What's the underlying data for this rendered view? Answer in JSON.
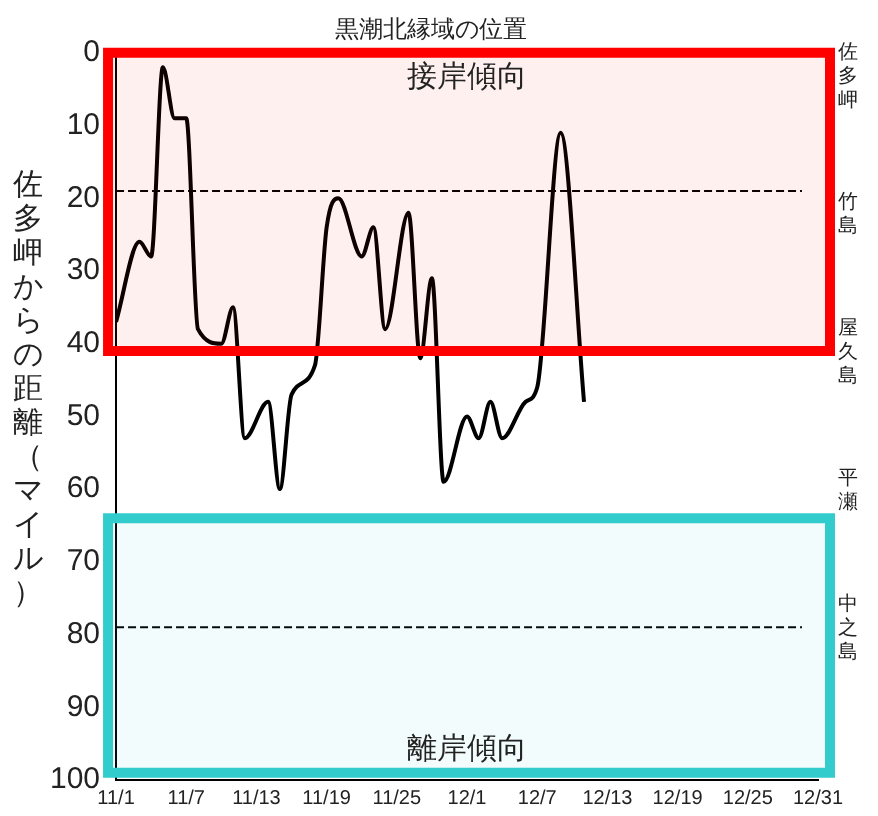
{
  "chart_data": {
    "type": "line",
    "title": "黒潮北縁域の位置",
    "ylabel": "佐多岬からの距離（マイル）",
    "x": [
      "--11-01",
      "--11-03",
      "--11-04",
      "--11-05",
      "--11-06",
      "--11-07",
      "--11-08",
      "--11-10",
      "--11-11",
      "--11-12",
      "--11-14",
      "--11-15",
      "--11-16",
      "--11-18",
      "--11-19",
      "--11-20",
      "--11-22",
      "--11-23",
      "--11-24",
      "--11-26",
      "--11-27",
      "--11-28",
      "--11-29",
      "--12-01",
      "--12-02",
      "--12-03",
      "--12-04",
      "--12-06",
      "--12-07",
      "--12-09",
      "--12-11"
    ],
    "series": [
      {
        "color": "#000000",
        "values": [
          37,
          26,
          28,
          2,
          9,
          9,
          38,
          40,
          35,
          53,
          48,
          60,
          47,
          43,
          24,
          20,
          28,
          24,
          38,
          22,
          42,
          31,
          59,
          50,
          53,
          48,
          53,
          48,
          46,
          11,
          48
        ]
      }
    ],
    "xlim": [
      "--11-01",
      "--12-31"
    ],
    "xticks": [
      {
        "value": "--11-01",
        "label": "11/1"
      },
      {
        "value": "--11-07",
        "label": "11/7"
      },
      {
        "value": "--11-13",
        "label": "11/13"
      },
      {
        "value": "--11-19",
        "label": "11/19"
      },
      {
        "value": "--11-25",
        "label": "11/25"
      },
      {
        "value": "--12-01",
        "label": "12/1"
      },
      {
        "value": "--12-07",
        "label": "12/7"
      },
      {
        "value": "--12-13",
        "label": "12/13"
      },
      {
        "value": "--12-19",
        "label": "12/19"
      },
      {
        "value": "--12-25",
        "label": "12/25"
      },
      {
        "value": "--12-31",
        "label": "12/31"
      }
    ],
    "ylim": [
      100,
      0
    ],
    "yticks": [
      0,
      10,
      20,
      30,
      40,
      50,
      60,
      70,
      80,
      90,
      100
    ],
    "annotations": [
      "佐多岬",
      "竹島",
      "屋久島",
      "平瀬",
      "中之島"
    ],
    "ref_lines": [
      {
        "axis": "y",
        "value": 19,
        "line_style": "dashed",
        "color": "#000000"
      },
      {
        "axis": "y",
        "value": 79,
        "line_style": "dashed",
        "color": "#000000"
      }
    ],
    "bands": [
      {
        "axis": "y",
        "from": 0,
        "to": 41,
        "label": "接岸傾向",
        "color": "#ff0000"
      },
      {
        "axis": "y",
        "from": 64,
        "to": 99,
        "label": "離岸傾向",
        "color": "#33cccc"
      }
    ],
    "grid": false,
    "legend": false,
    "marker": "none",
    "line_style": "solid"
  }
}
